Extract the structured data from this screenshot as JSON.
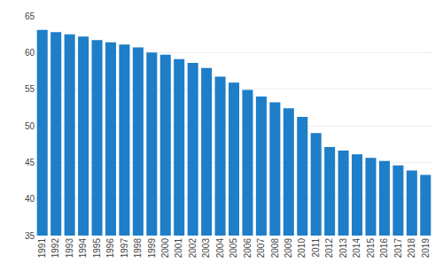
{
  "chart_data": {
    "type": "bar",
    "categories": [
      "1991",
      "1992",
      "1993",
      "1994",
      "1995",
      "1996",
      "1997",
      "1998",
      "1999",
      "2000",
      "2001",
      "2002",
      "2003",
      "2004",
      "2005",
      "2006",
      "2007",
      "2008",
      "2009",
      "2010",
      "2011",
      "2012",
      "2013",
      "2014",
      "2015",
      "2016",
      "2017",
      "2018",
      "2019"
    ],
    "values": [
      63.1,
      62.8,
      62.5,
      62.2,
      61.7,
      61.4,
      61.1,
      60.7,
      60.0,
      59.7,
      59.1,
      58.6,
      57.9,
      56.7,
      55.9,
      54.9,
      54.0,
      53.2,
      52.4,
      51.2,
      49.0,
      47.1,
      46.6,
      46.1,
      45.6,
      45.2,
      44.6,
      43.9,
      43.3
    ],
    "color": "#1e7ec8",
    "ylim": [
      35,
      65
    ],
    "yticks": [
      35,
      40,
      45,
      50,
      55,
      60,
      65
    ],
    "grid": true
  }
}
